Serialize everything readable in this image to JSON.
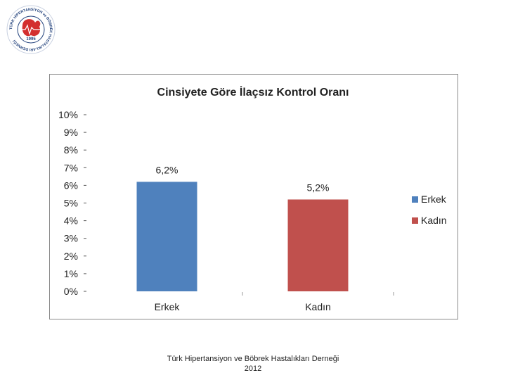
{
  "logo": {
    "ring_text": "TÜRK HİPERTANSİYON ve BÖBREK HASTALIKLARI DERNEĞİ",
    "year": "1995"
  },
  "chart_data": {
    "type": "bar",
    "title": "Cinsiyete Göre İlaçsız Kontrol Oranı",
    "categories": [
      "Erkek",
      "Kadın"
    ],
    "values": [
      6.2,
      5.2
    ],
    "data_labels": [
      "6,2%",
      "5,2%"
    ],
    "colors": [
      "#4f81bd",
      "#c0504d"
    ],
    "ylim": [
      0,
      10
    ],
    "yticks": [
      "0%",
      "1%",
      "2%",
      "3%",
      "4%",
      "5%",
      "6%",
      "7%",
      "8%",
      "9%",
      "10%"
    ],
    "legend": {
      "position": "right",
      "entries": [
        "Erkek",
        "Kadın"
      ]
    },
    "grid": false,
    "xlabel": "",
    "ylabel": ""
  },
  "footer": {
    "line1": "Türk Hipertansiyon ve Böbrek Hastalıkları Derneği",
    "line2": "2012"
  }
}
